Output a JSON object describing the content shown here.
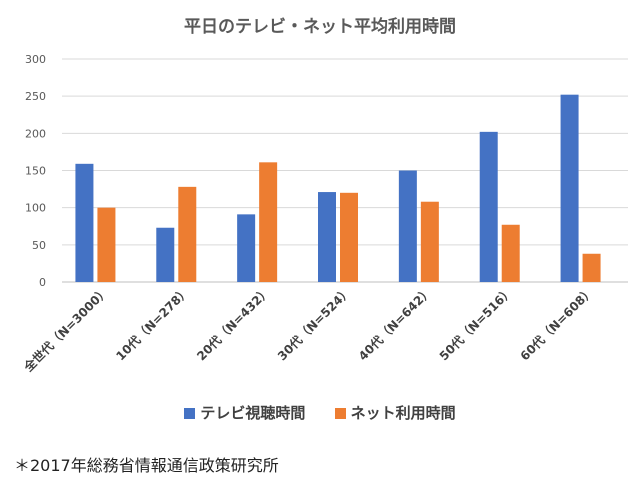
{
  "chart_data": {
    "type": "bar",
    "title": "平日のテレビ・ネット平均利用時間",
    "categories": [
      "全世代（N=3000）",
      "10代（N=278）",
      "20代（N=432）",
      "30代（N=524）",
      "40代（N=642）",
      "50代（N=516）",
      "60代（N=608）"
    ],
    "series": [
      {
        "name": "テレビ視聴時間",
        "color": "#4472C4",
        "values": [
          159,
          73,
          91,
          121,
          150,
          202,
          252
        ]
      },
      {
        "name": "ネット利用時間",
        "color": "#ED7D31",
        "values": [
          100,
          128,
          161,
          120,
          108,
          77,
          38
        ]
      }
    ],
    "y_ticks": [
      "0",
      "50",
      "100",
      "150",
      "200",
      "250",
      "300"
    ],
    "ylim": [
      0,
      300
    ],
    "grid": true,
    "legend": "bottom"
  },
  "footnote": "＊2017年総務省情報通信政策研究所"
}
